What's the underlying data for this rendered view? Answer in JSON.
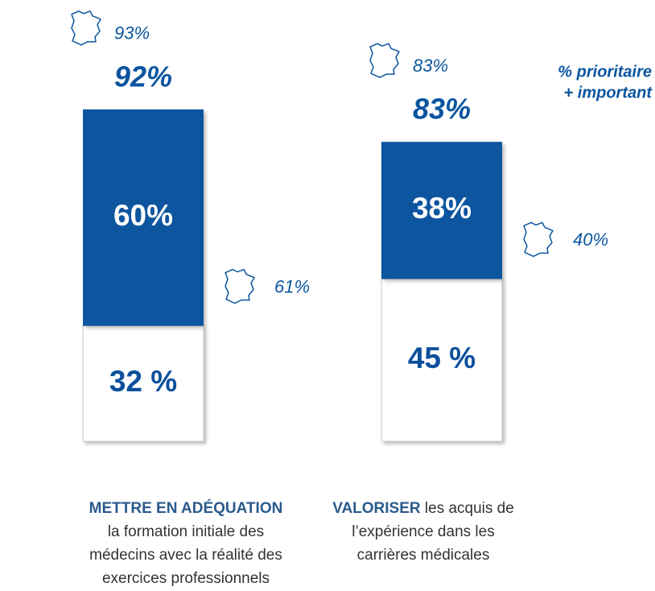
{
  "chart_data": {
    "type": "stacked_bar",
    "categories": [
      {
        "emphasis": "METTRE EN ADÉQUATION",
        "text": "la formation initiale des médecins avec la réalité des exercices professionnels"
      },
      {
        "emphasis": "VALORISER",
        "text": "les acquis de l’expérience dans les carrières médicales"
      }
    ],
    "series": [
      {
        "color": "#ffffff",
        "values": [
          32,
          45
        ],
        "value_labels": [
          "32 %",
          "45 %"
        ]
      },
      {
        "color": "#0b559f",
        "values": [
          60,
          38
        ],
        "value_labels": [
          "60%",
          "38%"
        ]
      }
    ],
    "totals": [
      92,
      83
    ],
    "total_labels": [
      "92%",
      "83%"
    ],
    "france_totals": [
      93,
      83
    ],
    "france_total_labels": [
      "93%",
      "83%"
    ],
    "france_top": [
      61,
      40
    ],
    "france_top_labels": [
      "61%",
      "40%"
    ],
    "note": [
      "% prioritaire",
      "+ important"
    ]
  }
}
